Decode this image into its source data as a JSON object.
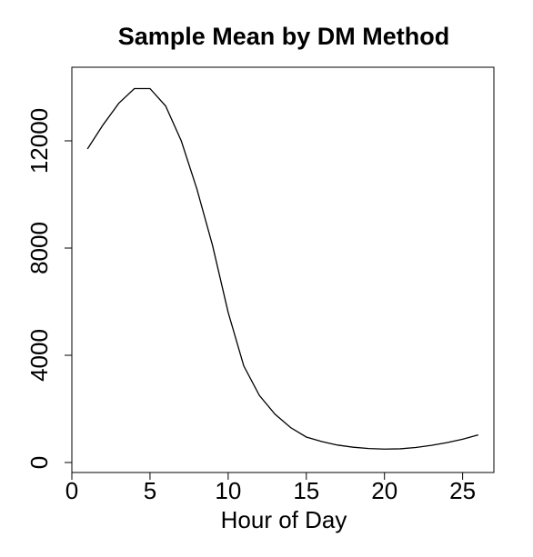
{
  "chart_data": {
    "type": "line",
    "title": "Sample Mean by DM Method",
    "x_label": "Hour of Day",
    "x": [
      1,
      2,
      3,
      4,
      5,
      6,
      7,
      8,
      9,
      10,
      11,
      12,
      13,
      14,
      15,
      16,
      17,
      18,
      19,
      20,
      21,
      22,
      23,
      24,
      25,
      26
    ],
    "series": [
      {
        "color": "#000000",
        "values": [
          11700,
          12600,
          13400,
          13950,
          13950,
          13300,
          12000,
          10200,
          8100,
          5600,
          3600,
          2500,
          1800,
          1300,
          950,
          780,
          650,
          570,
          520,
          500,
          510,
          560,
          640,
          740,
          870,
          1030
        ]
      }
    ],
    "xlim": [
      0,
      27
    ],
    "ylim": [
      -373,
      14746
    ],
    "xticks": [
      0,
      5,
      10,
      15,
      20,
      25
    ],
    "yticks": [
      0,
      4000,
      8000,
      12000
    ]
  }
}
